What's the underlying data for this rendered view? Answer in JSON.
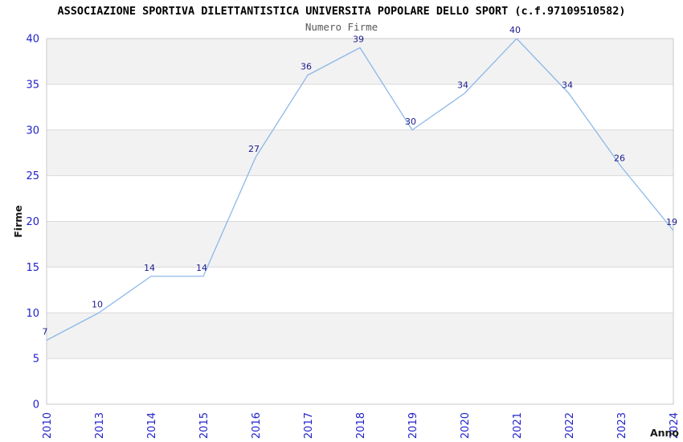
{
  "header": {
    "title": "ASSOCIAZIONE SPORTIVA DILETTANTISTICA UNIVERSITA POPOLARE DELLO SPORT (c.f.97109510582)",
    "subtitle": "Numero Firme"
  },
  "chart_data": {
    "type": "line",
    "title": "Numero Firme",
    "categories": [
      "2010",
      "2013",
      "2014",
      "2015",
      "2016",
      "2017",
      "2018",
      "2019",
      "2020",
      "2021",
      "2022",
      "2023",
      "2024"
    ],
    "series": [
      {
        "name": "Numero Firme",
        "values": [
          7,
          10,
          14,
          14,
          27,
          36,
          39,
          30,
          34,
          40,
          34,
          26,
          19
        ]
      }
    ],
    "xlabel": "Anno",
    "ylabel": "Firme",
    "ylim": [
      0,
      40
    ],
    "ytick_step": 5,
    "yticks": [
      0,
      5,
      10,
      15,
      20,
      25,
      30,
      35,
      40
    ],
    "grid": "horizontal-bands-alternating",
    "legend": "none",
    "colors": {
      "line": "#8cb8ea",
      "tick_label": "#2222cc",
      "point_label": "#1a1a8c",
      "band_gray": "#f2f2f2",
      "band_white": "#ffffff",
      "grid_line": "#d9d9d9",
      "plot_border": "#c9c9c9",
      "axis_title": "#1a1a1a",
      "title": "#000000",
      "subtitle": "#595959"
    }
  }
}
